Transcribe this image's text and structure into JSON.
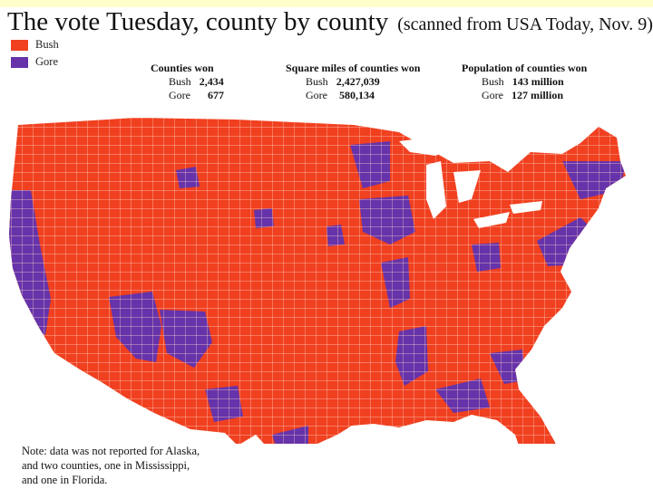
{
  "title": {
    "main": "The vote Tuesday, county by county",
    "sub": "(scanned from USA Today, Nov. 9)"
  },
  "legend": {
    "items": [
      {
        "label": "Bush",
        "color": "#f04020"
      },
      {
        "label": "Gore",
        "color": "#6633aa"
      }
    ]
  },
  "stats": {
    "counties": {
      "heading": "Counties won",
      "rows": [
        {
          "name": "Bush",
          "value": "2,434"
        },
        {
          "name": "Gore",
          "value": "677"
        }
      ]
    },
    "square_miles": {
      "heading": "Square miles of counties won",
      "rows": [
        {
          "name": "Bush",
          "value": "2,427,039"
        },
        {
          "name": "Gore",
          "value": "580,134"
        }
      ]
    },
    "population": {
      "heading": "Population of counties won",
      "rows": [
        {
          "name": "Bush",
          "value": "143 million"
        },
        {
          "name": "Gore",
          "value": "127 million"
        }
      ]
    }
  },
  "note": {
    "lines": [
      "Note: data was not reported for Alaska,",
      "and two counties, one in Mississippi,",
      "and one in Florida."
    ]
  },
  "colors": {
    "bush": "#f04020",
    "gore": "#6633aa",
    "county_lines": "#ffd7c8"
  }
}
